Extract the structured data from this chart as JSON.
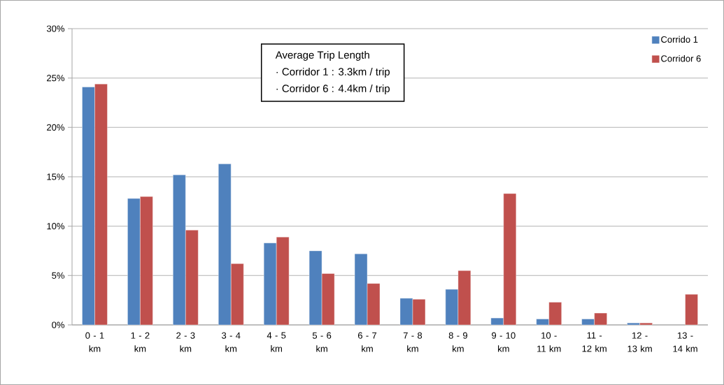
{
  "chart_data": {
    "type": "bar",
    "categories": [
      "0 - 1 km",
      "1 - 2 km",
      "2 - 3 km",
      "3 - 4 km",
      "4 - 5 km",
      "5 - 6 km",
      "6 - 7 km",
      "7 - 8 km",
      "8 - 9 km",
      "9 - 10 km",
      "10 - 11 km",
      "11 - 12 km",
      "12 - 13 km",
      "13 - 14 km"
    ],
    "series": [
      {
        "name": "Corrido 1",
        "color": "#4f81bd",
        "values": [
          24.1,
          12.8,
          15.2,
          16.3,
          8.3,
          7.5,
          7.2,
          2.7,
          3.6,
          0.7,
          0.6,
          0.6,
          0.2,
          null
        ]
      },
      {
        "name": "Corridor 6",
        "color": "#c0504d",
        "values": [
          24.4,
          13.0,
          9.6,
          6.2,
          8.9,
          5.2,
          4.2,
          2.6,
          5.5,
          13.3,
          2.3,
          1.2,
          0.2,
          3.1
        ]
      }
    ],
    "ylim": [
      0,
      30
    ],
    "yticks": [
      {
        "value": 0,
        "label": "0%"
      },
      {
        "value": 5,
        "label": "5%"
      },
      {
        "value": 10,
        "label": "10%"
      },
      {
        "value": 15,
        "label": "15%"
      },
      {
        "value": 20,
        "label": "20%"
      },
      {
        "value": 25,
        "label": "25%"
      },
      {
        "value": 30,
        "label": "30%"
      }
    ],
    "grid": "y",
    "legend": "top right",
    "annotations": [
      "Average Trip Length",
      "· Corridor 1 : 3.3km / trip",
      "· Corridor 6 : 4.4km / trip"
    ]
  }
}
